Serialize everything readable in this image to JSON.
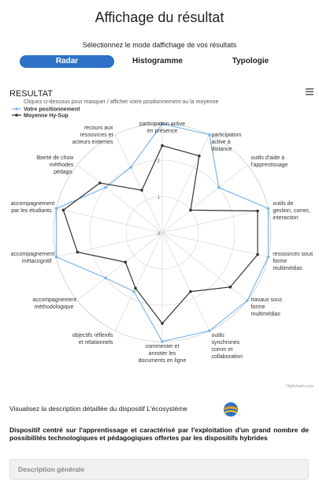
{
  "header": {
    "title": "Affichage du résultat",
    "subtitle": "Sélectionnez le mode daffichage de vos résultats"
  },
  "tabs": [
    "Radar",
    "Histogramme",
    "Typologie"
  ],
  "chart_data": {
    "type": "radar",
    "title": "RESULTAT",
    "subtitle": "Cliquez ci-dessous pour masquer / afficher votre positionnement ou la moyenne",
    "categories": [
      "participation active en présence",
      "participation active à distance",
      "outils d'aide à l'apprentissage",
      "outils de gestion, comm, interaction",
      "ressources sous forme multimédias",
      "travaux sous forme multimédias",
      "outils synchrones comm et collaboration",
      "commenter et annoter les documents en ligne",
      "objectifs réflexifs et relationnels",
      "accompagnement méthodologique",
      "accompagnement métacognitif",
      "accompagnement par les étudiants",
      "liberté de choix méthodes pédago.",
      "recours aux ressources et acteurs externes"
    ],
    "series": [
      {
        "name": "Votre positionnement",
        "color": "#7cb5ec",
        "values": [
          3,
          3,
          2,
          3,
          3,
          3,
          3,
          3,
          1.8,
          2,
          3,
          3,
          2,
          2
        ]
      },
      {
        "name": "Moyenne Hy-Sup",
        "color": "#333333",
        "values": [
          2.4,
          2.35,
          1,
          2.7,
          2.7,
          2.4,
          1.8,
          2.5,
          1.7,
          1.3,
          2.4,
          2.8,
          2.2,
          1.3
        ]
      }
    ],
    "ylim": [
      0,
      3
    ],
    "yticks": [
      0,
      1,
      2
    ],
    "grid": true,
    "legend": "top-left",
    "credit": "Highcharts.com"
  },
  "description": {
    "link_text": "Visualisez la description détaillée du dispositif L'écosystème",
    "summary": "Dispositif centré sur l'apprentissage et caractérisé par l'exploitation d'un grand nombre de possibilités technologiques et pédagogiques offertes par les dispositifs hybrides",
    "section": "Description générale"
  }
}
